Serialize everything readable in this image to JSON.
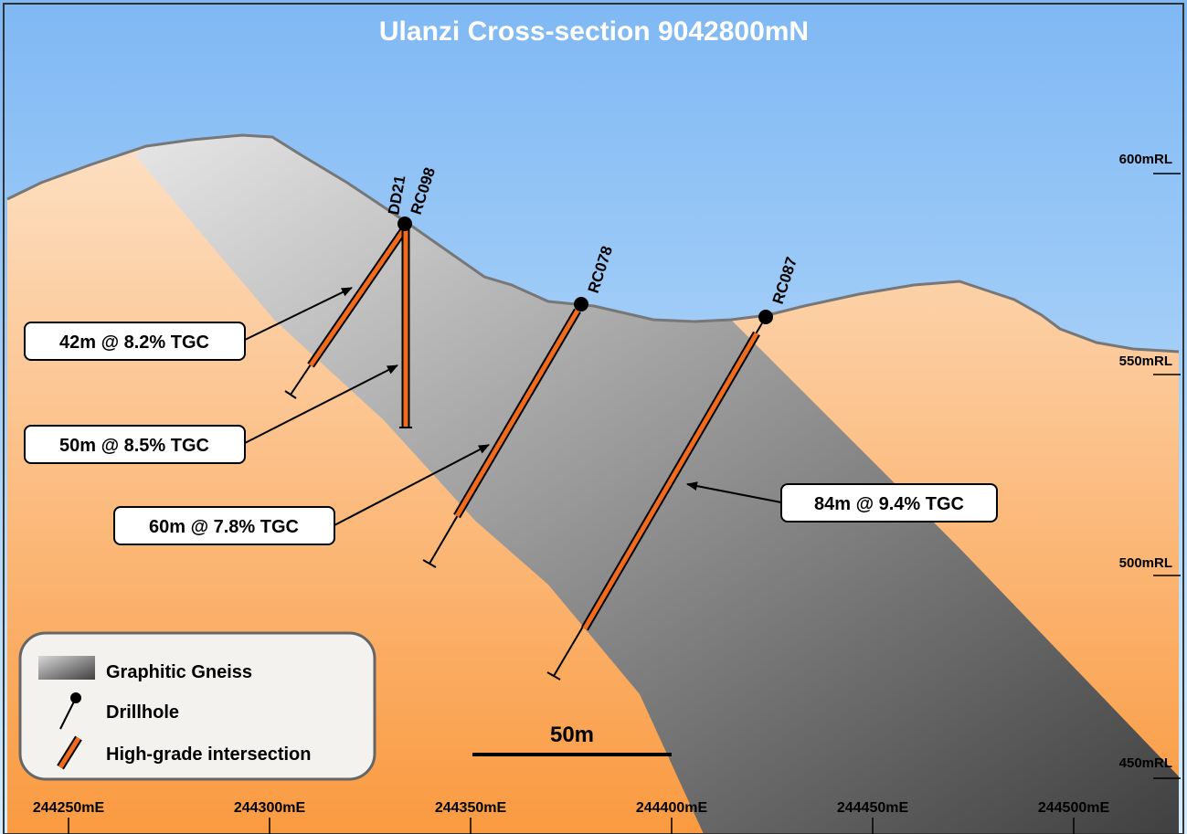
{
  "header": {
    "title": "Ulanzi Cross-section 9042800mN"
  },
  "elevation_labels": [
    "600mRL",
    "550mRL",
    "500mRL",
    "450mRL"
  ],
  "easting_labels": [
    "244250mE",
    "244300mE",
    "244350mE",
    "244400mE",
    "244450mE",
    "244500mE"
  ],
  "drillholes": [
    "DD21",
    "RC098",
    "RC078",
    "RC087"
  ],
  "intersections": [
    "42m @ 8.2% TGC",
    "50m @ 8.5% TGC",
    "60m @ 7.8% TGC",
    "84m @ 9.4% TGC"
  ],
  "legend": [
    "Graphitic Gneiss",
    "Drillhole",
    "High-grade intersection"
  ],
  "scale_bar": "50m"
}
